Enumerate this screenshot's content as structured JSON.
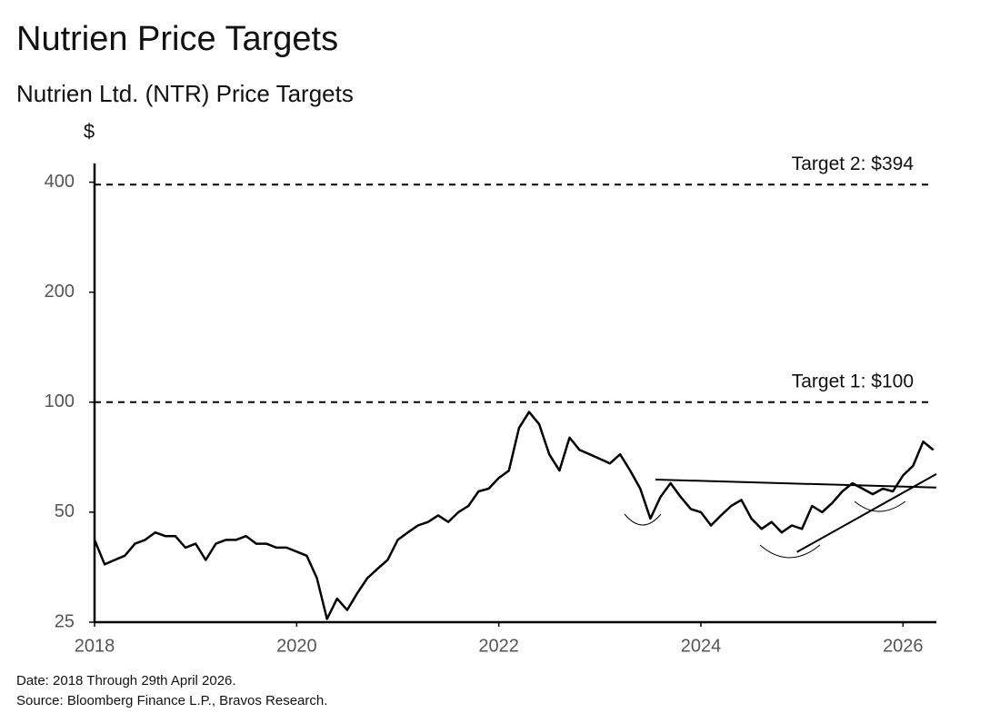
{
  "chart_data": {
    "type": "line",
    "title": "Nutrien Price Targets",
    "subtitle": "Nutrien Ltd. (NTR) Price Targets",
    "y_label": "$",
    "log_scale": true,
    "xlim": [
      2018,
      2026.33
    ],
    "xticks": [
      2018,
      2020,
      2022,
      2024,
      2026
    ],
    "ylim": [
      25,
      450
    ],
    "yticks": [
      25,
      50,
      100,
      200,
      400
    ],
    "series": [
      {
        "color": "#000000",
        "x": [
          2018.0,
          2018.1,
          2018.2,
          2018.3,
          2018.4,
          2018.5,
          2018.6,
          2018.7,
          2018.8,
          2018.9,
          2019.0,
          2019.1,
          2019.2,
          2019.3,
          2019.4,
          2019.5,
          2019.6,
          2019.7,
          2019.8,
          2019.9,
          2020.0,
          2020.1,
          2020.2,
          2020.3,
          2020.4,
          2020.5,
          2020.6,
          2020.7,
          2020.8,
          2020.9,
          2021.0,
          2021.1,
          2021.2,
          2021.3,
          2021.4,
          2021.5,
          2021.6,
          2021.7,
          2021.8,
          2021.9,
          2022.0,
          2022.1,
          2022.2,
          2022.3,
          2022.4,
          2022.5,
          2022.6,
          2022.7,
          2022.8,
          2022.9,
          2023.0,
          2023.1,
          2023.2,
          2023.3,
          2023.4,
          2023.5,
          2023.6,
          2023.7,
          2023.8,
          2023.9,
          2024.0,
          2024.1,
          2024.2,
          2024.3,
          2024.4,
          2024.5,
          2024.6,
          2024.7,
          2024.8,
          2024.9,
          2025.0,
          2025.1,
          2025.2,
          2025.3,
          2025.4,
          2025.5,
          2025.6,
          2025.7,
          2025.8,
          2025.9,
          2026.0,
          2026.1,
          2026.2,
          2026.3
        ],
        "values": [
          42,
          36,
          37,
          38,
          41,
          42,
          44,
          43,
          43,
          40,
          41,
          37,
          41,
          42,
          42,
          43,
          41,
          41,
          40,
          40,
          39,
          38,
          33,
          25.5,
          29,
          27,
          30,
          33,
          35,
          37,
          42,
          44,
          46,
          47,
          49,
          47,
          50,
          52,
          57,
          58,
          62,
          65,
          85,
          94,
          87,
          72,
          65,
          80,
          74,
          72,
          70,
          68,
          72,
          65,
          58,
          48,
          55,
          60,
          55,
          51,
          50,
          46,
          49,
          52,
          54,
          48,
          45,
          47,
          44,
          46,
          45,
          52,
          50,
          53,
          57,
          60,
          58,
          56,
          58,
          57,
          63,
          67,
          78,
          74
        ]
      }
    ],
    "targets": [
      {
        "label": "Target 1: $100",
        "value": 100
      },
      {
        "label": "Target 2: $394",
        "value": 394
      }
    ],
    "trendlines": [
      {
        "x": [
          2023.55,
          2026.33
        ],
        "values": [
          61.4,
          58.4
        ]
      },
      {
        "x": [
          2024.95,
          2026.33
        ],
        "values": [
          38.9,
          63.6
        ]
      }
    ],
    "notes": [
      "Date: 2018 Through 29th April 2026.",
      "Source: Bloomberg Finance L.P., Bravos Research."
    ]
  }
}
